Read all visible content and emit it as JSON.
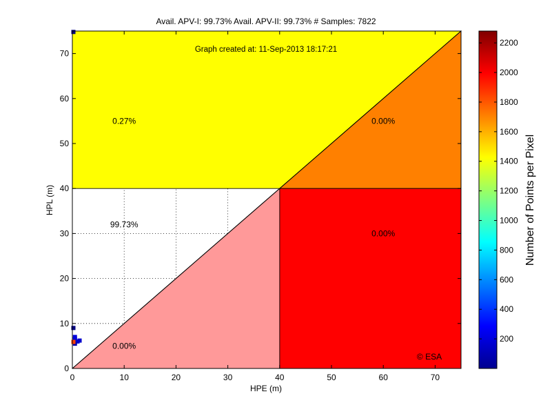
{
  "chart_data": {
    "type": "heatmap",
    "title": "Avail. APV-I: 99.73%  Avail. APV-II: 99.73%  # Samples: 7822",
    "subtitle": "Graph created at: 11-Sep-2013 18:17:21",
    "xlabel": "HPE (m)",
    "ylabel": "HPL (m)",
    "xlim": [
      0,
      75
    ],
    "ylim": [
      0,
      75
    ],
    "alert_limit": 40,
    "x_ticks": [
      0,
      10,
      20,
      30,
      40,
      50,
      60,
      70
    ],
    "y_ticks": [
      0,
      10,
      20,
      30,
      40,
      50,
      60,
      70
    ],
    "grid": true,
    "regions": [
      {
        "name": "yellow-upper-left",
        "color": "#ffff00",
        "polygon": [
          [
            0,
            40
          ],
          [
            40,
            40
          ],
          [
            75,
            75
          ],
          [
            0,
            75
          ]
        ]
      },
      {
        "name": "orange-upper-right",
        "color": "#ff8000",
        "polygon": [
          [
            40,
            40
          ],
          [
            75,
            40
          ],
          [
            75,
            75
          ]
        ]
      },
      {
        "name": "red-lower-right",
        "color": "#ff0000",
        "polygon": [
          [
            40,
            0
          ],
          [
            75,
            0
          ],
          [
            75,
            40
          ],
          [
            40,
            40
          ]
        ]
      },
      {
        "name": "pink-lower-triangle",
        "color": "#ff9999",
        "polygon": [
          [
            0,
            0
          ],
          [
            40,
            0
          ],
          [
            40,
            40
          ]
        ]
      }
    ],
    "region_labels": [
      {
        "text": "0.27%",
        "x": 10,
        "y": 55
      },
      {
        "text": "0.00%",
        "x": 60,
        "y": 55
      },
      {
        "text": "99.73%",
        "x": 10,
        "y": 32
      },
      {
        "text": "0.00%",
        "x": 60,
        "y": 30
      },
      {
        "text": "0.00%",
        "x": 10,
        "y": 5
      }
    ],
    "annotation": "© ESA",
    "data_points": [
      {
        "x": 0.5,
        "y": 6.5,
        "color": "#0000cc"
      },
      {
        "x": 1.0,
        "y": 6.0,
        "color": "#0000cc"
      },
      {
        "x": 0.5,
        "y": 5.5,
        "color": "#0000aa"
      },
      {
        "x": 0.2,
        "y": 5.9,
        "color": "#ff4000"
      },
      {
        "x": 1.4,
        "y": 6.2,
        "color": "#0000cc"
      },
      {
        "x": 0.5,
        "y": 7.0,
        "color": "#0000dd"
      },
      {
        "x": 0.2,
        "y": 9.0,
        "color": "#000080"
      },
      {
        "x": 0.2,
        "y": 74.8,
        "color": "#000080"
      }
    ],
    "colorbar": {
      "label": "Number of Points per Pixel",
      "min": 0,
      "max": 2280,
      "ticks": [
        200,
        400,
        600,
        800,
        1000,
        1200,
        1400,
        1600,
        1800,
        2000,
        2200
      ],
      "colormap": "jet"
    }
  }
}
